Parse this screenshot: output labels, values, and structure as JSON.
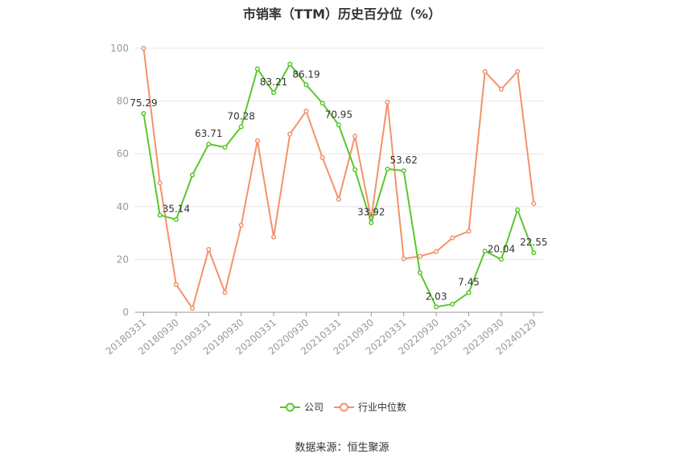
{
  "chart_data": {
    "type": "line",
    "title": "市销率（TTM）历史百分位（%）",
    "ylim": [
      0,
      100
    ],
    "yticks": [
      0,
      20,
      40,
      60,
      80,
      100
    ],
    "grid": true,
    "legend": "bottom-center",
    "xticks": [
      "20180331",
      "20180930",
      "20190331",
      "20190930",
      "20200331",
      "20200930",
      "20210331",
      "20210930",
      "20220331",
      "20220930",
      "20230331",
      "20230930",
      "20240129"
    ],
    "source": "数据来源：恒生聚源",
    "series": [
      {
        "name": "公司",
        "color": "#5bc72e",
        "values": [
          75.29,
          36.8,
          35.14,
          52.0,
          63.71,
          62.5,
          70.28,
          92.2,
          83.21,
          94.0,
          86.19,
          79.2,
          70.95,
          54.0,
          33.92,
          54.3,
          53.62,
          15.0,
          2.03,
          3.1,
          7.45,
          23.2,
          20.04,
          38.8,
          22.55
        ],
        "labeled": [
          {
            "index": 0,
            "text": "75.29"
          },
          {
            "index": 2,
            "text": "35.14"
          },
          {
            "index": 4,
            "text": "63.71"
          },
          {
            "index": 6,
            "text": "70.28"
          },
          {
            "index": 8,
            "text": "83.21"
          },
          {
            "index": 10,
            "text": "86.19"
          },
          {
            "index": 12,
            "text": "70.95"
          },
          {
            "index": 14,
            "text": "33.92"
          },
          {
            "index": 16,
            "text": "53.62"
          },
          {
            "index": 18,
            "text": "2.03"
          },
          {
            "index": 20,
            "text": "7.45"
          },
          {
            "index": 22,
            "text": "20.04"
          },
          {
            "index": 24,
            "text": "22.55"
          }
        ]
      },
      {
        "name": "行业中位数",
        "color": "#f4926a",
        "values": [
          100.0,
          49.0,
          10.5,
          1.5,
          23.8,
          7.5,
          33.0,
          65.0,
          28.5,
          67.5,
          76.2,
          58.6,
          42.8,
          66.7,
          35.5,
          79.6,
          20.3,
          21.2,
          23.0,
          28.2,
          30.7,
          91.2,
          84.5,
          91.2,
          41.2
        ]
      }
    ]
  }
}
